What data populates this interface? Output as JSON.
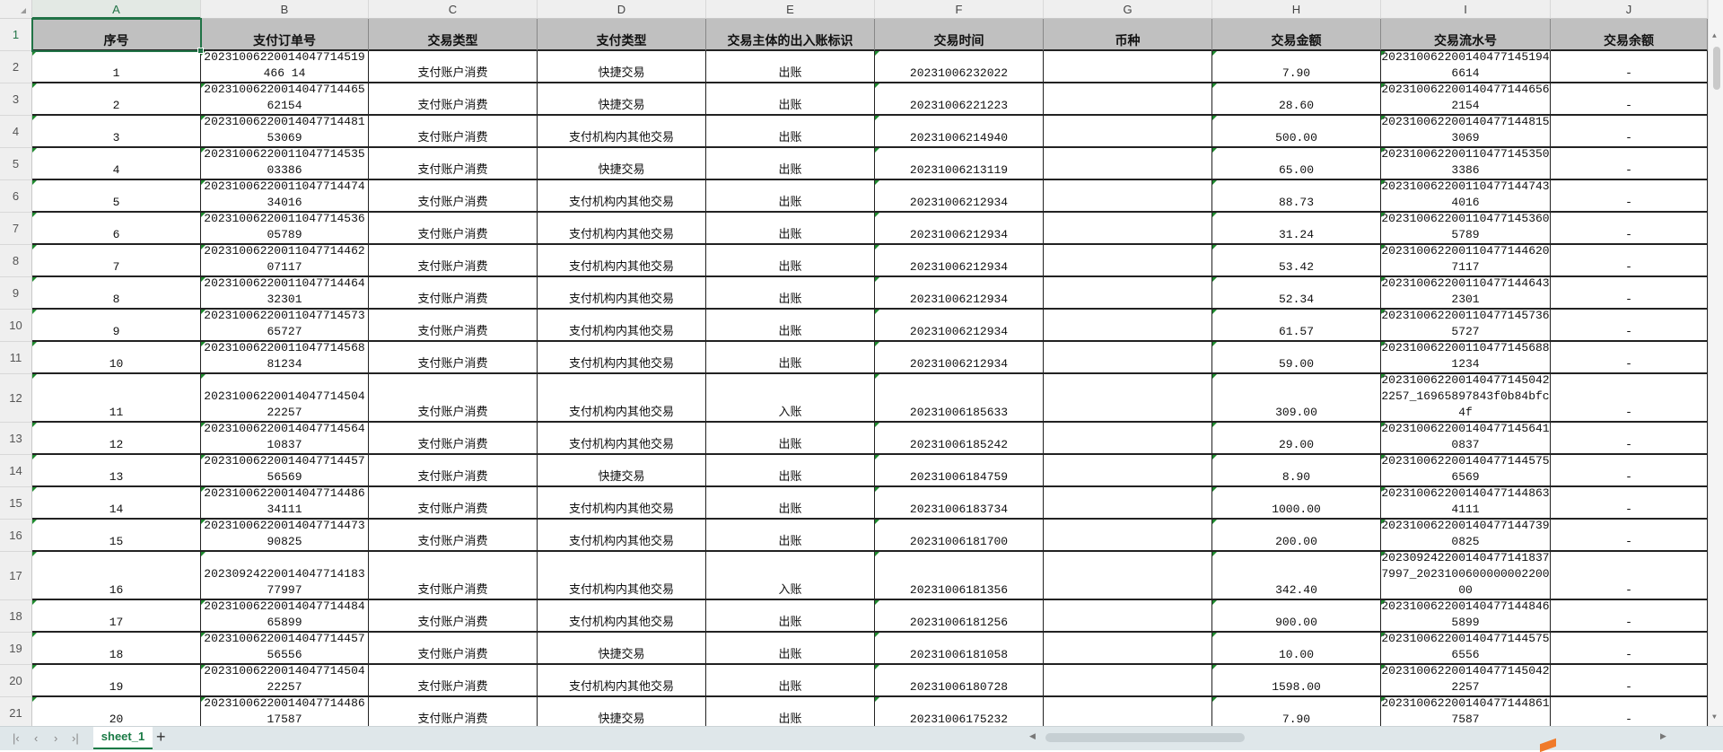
{
  "columns": [
    "A",
    "B",
    "C",
    "D",
    "E",
    "F",
    "G",
    "H",
    "I",
    "J"
  ],
  "selected_cell": "A1",
  "headers": [
    "序号",
    "支付订单号",
    "交易类型",
    "支付类型",
    "交易主体的出入账标识",
    "交易时间",
    "币种",
    "交易金额",
    "交易流水号",
    "交易余额"
  ],
  "rows": [
    [
      "1",
      "20231006220014047714519466 14",
      "支付账户消费",
      "快捷交易",
      "出账",
      "20231006232022",
      "",
      "7.90",
      "2023100622001404771451946614",
      "-"
    ],
    [
      "2",
      "2023100622001404771446562154",
      "支付账户消费",
      "快捷交易",
      "出账",
      "20231006221223",
      "",
      "28.60",
      "2023100622001404771446562154",
      "-"
    ],
    [
      "3",
      "2023100622001404771448153069",
      "支付账户消费",
      "支付机构内其他交易",
      "出账",
      "20231006214940",
      "",
      "500.00",
      "2023100622001404771448153069",
      "-"
    ],
    [
      "4",
      "2023100622001104771453503386",
      "支付账户消费",
      "快捷交易",
      "出账",
      "20231006213119",
      "",
      "65.00",
      "2023100622001104771453503386",
      "-"
    ],
    [
      "5",
      "2023100622001104771447434016",
      "支付账户消费",
      "支付机构内其他交易",
      "出账",
      "20231006212934",
      "",
      "88.73",
      "2023100622001104771447434016",
      "-"
    ],
    [
      "6",
      "2023100622001104771453605789",
      "支付账户消费",
      "支付机构内其他交易",
      "出账",
      "20231006212934",
      "",
      "31.24",
      "2023100622001104771453605789",
      "-"
    ],
    [
      "7",
      "2023100622001104771446207117",
      "支付账户消费",
      "支付机构内其他交易",
      "出账",
      "20231006212934",
      "",
      "53.42",
      "2023100622001104771446207117",
      "-"
    ],
    [
      "8",
      "2023100622001104771446432301",
      "支付账户消费",
      "支付机构内其他交易",
      "出账",
      "20231006212934",
      "",
      "52.34",
      "2023100622001104771446432301",
      "-"
    ],
    [
      "9",
      "2023100622001104771457365727",
      "支付账户消费",
      "支付机构内其他交易",
      "出账",
      "20231006212934",
      "",
      "61.57",
      "2023100622001104771457365727",
      "-"
    ],
    [
      "10",
      "2023100622001104771456881234",
      "支付账户消费",
      "支付机构内其他交易",
      "出账",
      "20231006212934",
      "",
      "59.00",
      "2023100622001104771456881234",
      "-"
    ],
    [
      "11",
      "2023100622001404771450422257",
      "支付账户消费",
      "支付机构内其他交易",
      "入账",
      "20231006185633",
      "",
      "309.00",
      "2023100622001404771450422257_16965897843f0b84bfc4f",
      "-"
    ],
    [
      "12",
      "2023100622001404771456410837",
      "支付账户消费",
      "支付机构内其他交易",
      "出账",
      "20231006185242",
      "",
      "29.00",
      "2023100622001404771456410837",
      "-"
    ],
    [
      "13",
      "2023100622001404771445756569",
      "支付账户消费",
      "快捷交易",
      "出账",
      "20231006184759",
      "",
      "8.90",
      "2023100622001404771445756569",
      "-"
    ],
    [
      "14",
      "2023100622001404771448634111",
      "支付账户消费",
      "支付机构内其他交易",
      "出账",
      "20231006183734",
      "",
      "1000.00",
      "2023100622001404771448634111",
      "-"
    ],
    [
      "15",
      "2023100622001404771447390825",
      "支付账户消费",
      "支付机构内其他交易",
      "出账",
      "20231006181700",
      "",
      "200.00",
      "2023100622001404771447390825",
      "-"
    ],
    [
      "16",
      "2023092422001404771418377997",
      "支付账户消费",
      "支付机构内其他交易",
      "入账",
      "20231006181356",
      "",
      "342.40",
      "2023092422001404771418377997_202310060000000220000",
      "-"
    ],
    [
      "17",
      "2023100622001404771448465899",
      "支付账户消费",
      "支付机构内其他交易",
      "出账",
      "20231006181256",
      "",
      "900.00",
      "2023100622001404771448465899",
      "-"
    ],
    [
      "18",
      "2023100622001404771445756556",
      "支付账户消费",
      "快捷交易",
      "出账",
      "20231006181058",
      "",
      "10.00",
      "2023100622001404771445756556",
      "-"
    ],
    [
      "19",
      "2023100622001404771450422257",
      "支付账户消费",
      "支付机构内其他交易",
      "出账",
      "20231006180728",
      "",
      "1598.00",
      "2023100622001404771450422257",
      "-"
    ],
    [
      "20",
      "2023100622001404771448617587",
      "支付账户消费",
      "快捷交易",
      "出账",
      "20231006175232",
      "",
      "7.90",
      "2023100622001404771448617587",
      "-"
    ]
  ],
  "sheet_tabs": [
    {
      "label": "sheet_1",
      "active": true
    }
  ],
  "add_sheet_label": "+",
  "nav_icons": [
    "first-sheet-icon",
    "prev-sheet-icon",
    "next-sheet-icon",
    "last-sheet-icon"
  ]
}
